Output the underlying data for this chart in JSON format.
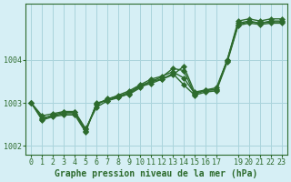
{
  "xlabel": "Graphe pression niveau de la mer (hPa)",
  "background_color": "#d6eff5",
  "grid_color": "#aad4dc",
  "line_color": "#2d6b2d",
  "marker_color": "#2d6b2d",
  "xlim": [
    -0.5,
    23.5
  ],
  "ylim": [
    1001.8,
    1005.3
  ],
  "yticks": [
    1002,
    1003,
    1004
  ],
  "xticks": [
    0,
    1,
    2,
    3,
    4,
    5,
    6,
    7,
    8,
    9,
    10,
    11,
    12,
    13,
    14,
    15,
    16,
    17,
    19,
    20,
    21,
    22,
    23
  ],
  "xtick_labels": [
    "0",
    "1",
    "2",
    "3",
    "4",
    "5",
    "6",
    "7",
    "8",
    "9",
    "10",
    "11",
    "12",
    "13",
    "14",
    "15",
    "16",
    "17",
    "19",
    "20",
    "21",
    "22",
    "23"
  ],
  "series": [
    [
      1003.0,
      1002.7,
      1002.75,
      1002.8,
      1002.8,
      1002.4,
      1002.9,
      1003.05,
      1003.15,
      1003.2,
      1003.35,
      1003.5,
      1003.55,
      1003.65,
      1003.85,
      1003.25,
      1003.3,
      1003.35,
      1004.0,
      1004.9,
      1004.95,
      1004.9,
      1004.95,
      1004.95
    ],
    [
      1003.0,
      1002.65,
      1002.7,
      1002.75,
      1002.75,
      1002.38,
      1002.95,
      1003.1,
      1003.15,
      1003.25,
      1003.4,
      1003.5,
      1003.6,
      1003.8,
      1003.75,
      1003.2,
      1003.3,
      1003.3,
      1004.0,
      1004.85,
      1004.9,
      1004.85,
      1004.9,
      1004.9
    ],
    [
      1003.0,
      1002.62,
      1002.72,
      1002.78,
      1002.78,
      1002.35,
      1002.98,
      1003.08,
      1003.18,
      1003.28,
      1003.42,
      1003.55,
      1003.62,
      1003.72,
      1003.58,
      1003.22,
      1003.28,
      1003.32,
      1003.98,
      1004.82,
      1004.88,
      1004.85,
      1004.88,
      1004.88
    ],
    [
      1003.0,
      1002.6,
      1002.68,
      1002.72,
      1002.72,
      1002.32,
      1003.0,
      1003.05,
      1003.12,
      1003.22,
      1003.38,
      1003.45,
      1003.55,
      1003.68,
      1003.42,
      1003.18,
      1003.25,
      1003.28,
      1003.95,
      1004.8,
      1004.85,
      1004.82,
      1004.85,
      1004.85
    ]
  ],
  "marker": "D",
  "markersize": 3,
  "linewidth": 1.0,
  "xlabel_fontsize": 7,
  "tick_fontsize": 6
}
